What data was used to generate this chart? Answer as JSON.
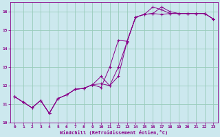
{
  "xlabel": "Windchill (Refroidissement éolien,°C)",
  "background_color": "#cce8ee",
  "grid_color": "#99ccbb",
  "line_color": "#880088",
  "marker_color": "#880088",
  "xlim": [
    -0.5,
    23.5
  ],
  "ylim": [
    10.0,
    16.5
  ],
  "yticks": [
    10,
    11,
    12,
    13,
    14,
    15,
    16
  ],
  "xticks": [
    0,
    1,
    2,
    3,
    4,
    5,
    6,
    7,
    8,
    9,
    10,
    11,
    12,
    13,
    14,
    15,
    16,
    17,
    18,
    19,
    20,
    21,
    22,
    23
  ],
  "series": [
    [
      11.4,
      11.1,
      10.8,
      11.2,
      10.5,
      11.3,
      11.5,
      11.8,
      11.85,
      12.05,
      12.5,
      12.0,
      12.5,
      14.35,
      15.7,
      15.85,
      15.9,
      15.85,
      15.9,
      15.9,
      15.9,
      15.9,
      15.9,
      15.6
    ],
    [
      11.4,
      11.1,
      10.8,
      11.2,
      10.5,
      11.3,
      11.5,
      11.8,
      11.85,
      12.05,
      11.9,
      13.0,
      14.45,
      14.4,
      15.7,
      15.85,
      16.25,
      16.1,
      15.9,
      15.9,
      15.9,
      15.9,
      15.9,
      15.6
    ],
    [
      11.4,
      11.1,
      10.8,
      11.2,
      10.5,
      11.3,
      11.5,
      11.8,
      11.85,
      12.05,
      12.1,
      12.0,
      13.0,
      14.35,
      15.7,
      15.85,
      15.9,
      16.25,
      16.0,
      15.9,
      15.9,
      15.9,
      15.9,
      15.6
    ]
  ]
}
